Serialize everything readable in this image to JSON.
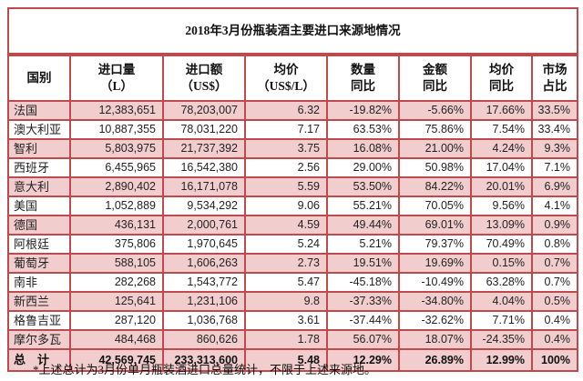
{
  "title": "2018年3月份瓶装酒主要进口来源地情况",
  "footnote": "*上述总计为3月份单月瓶装酒进口总量统计，不限于上述来源地。",
  "colors": {
    "border_red": "#bf4a4d",
    "row_pink": "#f2cdcd",
    "background": "#ffffff",
    "text": "#111111"
  },
  "table": {
    "columns": [
      {
        "line1": "国别",
        "line2": ""
      },
      {
        "line1": "进口量",
        "line2": "（L）"
      },
      {
        "line1": "进口额",
        "line2": "（US$）"
      },
      {
        "line1": "均价",
        "line2": "（US$/L）"
      },
      {
        "line1": "数量",
        "line2": "同比"
      },
      {
        "line1": "金额",
        "line2": "同比"
      },
      {
        "line1": "均价",
        "line2": "同比"
      },
      {
        "line1": "市场",
        "line2": "占比"
      }
    ],
    "rows": [
      {
        "country": "法国",
        "volume": "12,383,651",
        "value": "78,203,007",
        "avg_price": "6.32",
        "volume_yoy": "-19.82%",
        "value_yoy": "-5.66%",
        "price_yoy": "17.66%",
        "market_share": "33.5%",
        "shaded": true
      },
      {
        "country": "澳大利亚",
        "volume": "10,887,355",
        "value": "78,031,220",
        "avg_price": "7.17",
        "volume_yoy": "63.53%",
        "value_yoy": "75.86%",
        "price_yoy": "7.54%",
        "market_share": "33.4%",
        "shaded": false
      },
      {
        "country": "智利",
        "volume": "5,803,975",
        "value": "21,737,392",
        "avg_price": "3.75",
        "volume_yoy": "16.08%",
        "value_yoy": "21.00%",
        "price_yoy": "4.24%",
        "market_share": "9.3%",
        "shaded": true
      },
      {
        "country": "西班牙",
        "volume": "6,455,965",
        "value": "16,542,380",
        "avg_price": "2.56",
        "volume_yoy": "29.00%",
        "value_yoy": "50.98%",
        "price_yoy": "17.04%",
        "market_share": "7.1%",
        "shaded": false
      },
      {
        "country": "意大利",
        "volume": "2,890,402",
        "value": "16,171,078",
        "avg_price": "5.59",
        "volume_yoy": "53.50%",
        "value_yoy": "84.22%",
        "price_yoy": "20.01%",
        "market_share": "6.9%",
        "shaded": true
      },
      {
        "country": "美国",
        "volume": "1,052,889",
        "value": "9,534,292",
        "avg_price": "9.06",
        "volume_yoy": "55.21%",
        "value_yoy": "70.05%",
        "price_yoy": "9.56%",
        "market_share": "4.1%",
        "shaded": false
      },
      {
        "country": "德国",
        "volume": "436,131",
        "value": "2,000,761",
        "avg_price": "4.59",
        "volume_yoy": "49.44%",
        "value_yoy": "69.01%",
        "price_yoy": "13.09%",
        "market_share": "0.9%",
        "shaded": true
      },
      {
        "country": "阿根廷",
        "volume": "375,806",
        "value": "1,970,645",
        "avg_price": "5.24",
        "volume_yoy": "5.21%",
        "value_yoy": "79.37%",
        "price_yoy": "70.49%",
        "market_share": "0.8%",
        "shaded": false
      },
      {
        "country": "葡萄牙",
        "volume": "588,105",
        "value": "1,606,263",
        "avg_price": "2.73",
        "volume_yoy": "19.51%",
        "value_yoy": "19.69%",
        "price_yoy": "0.15%",
        "market_share": "0.7%",
        "shaded": true
      },
      {
        "country": "南非",
        "volume": "282,268",
        "value": "1,543,772",
        "avg_price": "5.47",
        "volume_yoy": "-45.18%",
        "value_yoy": "-10.49%",
        "price_yoy": "63.28%",
        "market_share": "0.7%",
        "shaded": false
      },
      {
        "country": "新西兰",
        "volume": "125,641",
        "value": "1,231,106",
        "avg_price": "9.8",
        "volume_yoy": "-37.33%",
        "value_yoy": "-34.80%",
        "price_yoy": "4.04%",
        "market_share": "0.5%",
        "shaded": true
      },
      {
        "country": "格鲁吉亚",
        "volume": "287,120",
        "value": "1,036,768",
        "avg_price": "3.61",
        "volume_yoy": "-37.44%",
        "value_yoy": "-32.62%",
        "price_yoy": "7.71%",
        "market_share": "0.4%",
        "shaded": false
      },
      {
        "country": "摩尔多瓦",
        "volume": "484,468",
        "value": "860,626",
        "avg_price": "1.78",
        "volume_yoy": "56.07%",
        "value_yoy": "18.07%",
        "price_yoy": "-24.35%",
        "market_share": "0.4%",
        "shaded": true
      }
    ],
    "total": {
      "country": "总　计",
      "volume": "42,569,745",
      "value": "233,313,600",
      "avg_price": "5.48",
      "volume_yoy": "12.29%",
      "value_yoy": "26.89%",
      "price_yoy": "12.99%",
      "market_share": "100%",
      "shaded": true
    }
  }
}
